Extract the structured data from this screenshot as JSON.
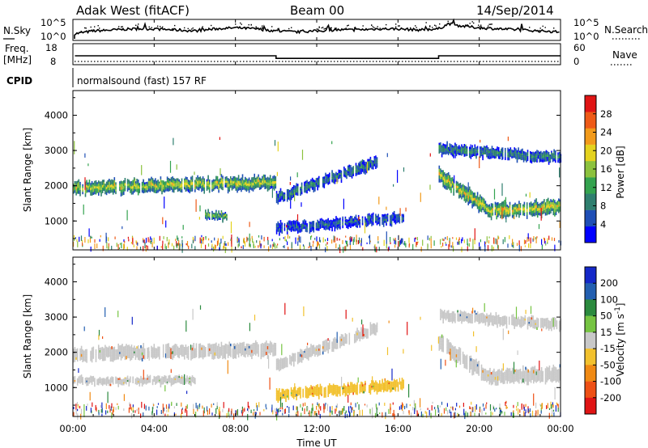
{
  "header": {
    "station": "Adak West (fitACF)",
    "beam": "Beam 00",
    "date": "14/Sep/2014"
  },
  "chart_data": [
    {
      "panel": "noise",
      "type": "line",
      "left_label": "N.Sky",
      "right_label": "N.Search",
      "left_ticks": [
        "10^5",
        "10^0"
      ],
      "right_ticks": [
        "10^5",
        "10^0"
      ],
      "series": [
        {
          "name": "N.Sky",
          "style": "solid"
        },
        {
          "name": "N.Search",
          "style": "dotted"
        }
      ],
      "x_hours": [
        0,
        1,
        2,
        3,
        4,
        5,
        6,
        7,
        8,
        9,
        10,
        11,
        12,
        13,
        14,
        15,
        16,
        17,
        18,
        18.5,
        19,
        20,
        21,
        22,
        23,
        24
      ],
      "y_frac": [
        0.3,
        0.45,
        0.5,
        0.55,
        0.55,
        0.5,
        0.45,
        0.55,
        0.6,
        0.55,
        0.45,
        0.4,
        0.45,
        0.5,
        0.5,
        0.55,
        0.55,
        0.5,
        0.55,
        0.8,
        0.7,
        0.6,
        0.55,
        0.5,
        0.45,
        0.4
      ]
    },
    {
      "panel": "frequency",
      "type": "line",
      "left_label": "Freq.",
      "left_units": "[MHz]",
      "right_label": "Nave",
      "left_ticks": [
        "18",
        "8"
      ],
      "right_ticks": [
        "60",
        "0"
      ],
      "series": [
        {
          "name": "Freq.",
          "style": "solid",
          "segments": [
            {
              "x0": 0.1,
              "x1": 10,
              "value": 10.5
            },
            {
              "x0": 10,
              "x1": 18,
              "value": 8.9
            },
            {
              "x0": 18,
              "x1": 24,
              "value": 10.5
            }
          ]
        },
        {
          "name": "Nave",
          "style": "dotted",
          "value": 7
        }
      ],
      "ylim": [
        5,
        18
      ]
    },
    {
      "panel": "cpid",
      "label": "CPID",
      "text": "normalsound (fast) 157 RF"
    },
    {
      "panel": "power",
      "type": "heatmap",
      "ylabel": "Slant Range [km]",
      "ylim": [
        180,
        4700
      ],
      "yticks": [
        "1000",
        "2000",
        "3000",
        "4000"
      ],
      "colorbar_label": "Power [dB]",
      "colorbar_ticks": [
        "4",
        "8",
        "12",
        "16",
        "20",
        "24",
        "28"
      ],
      "colormap": [
        "#0000ff",
        "#1f4fb6",
        "#2f7f6f",
        "#34a34f",
        "#8cc23e",
        "#e4d21e",
        "#f29a1a",
        "#ee5a17",
        "#e01414"
      ],
      "echo_bands": [
        {
          "x0": 0.0,
          "x1": 10.0,
          "r0_start": 1950,
          "r0_end": 2100,
          "width": 350,
          "peak_db": 18
        },
        {
          "x0": 10.0,
          "x1": 15.0,
          "r0_start": 1650,
          "r0_end": 2700,
          "width": 300,
          "peak_db": 9
        },
        {
          "x0": 10.0,
          "x1": 16.3,
          "r0_start": 800,
          "r0_end": 1100,
          "width": 280,
          "peak_db": 7
        },
        {
          "x0": 6.5,
          "x1": 7.6,
          "r0_start": 1150,
          "r0_end": 1150,
          "width": 220,
          "peak_db": 16
        },
        {
          "x0": 18.0,
          "x1": 20.5,
          "r0_start": 2300,
          "r0_end": 1300,
          "width": 380,
          "peak_db": 20
        },
        {
          "x0": 20.5,
          "x1": 24.0,
          "r0_start": 1300,
          "r0_end": 1400,
          "width": 380,
          "peak_db": 20
        },
        {
          "x0": 18.0,
          "x1": 24.0,
          "r0_start": 3050,
          "r0_end": 2800,
          "width": 280,
          "peak_db": 10
        }
      ]
    },
    {
      "panel": "velocity",
      "type": "heatmap",
      "ylabel": "Slant Range [km]",
      "ylim": [
        180,
        4700
      ],
      "yticks": [
        "1000",
        "2000",
        "3000",
        "4000"
      ],
      "colorbar_label": "Velocity",
      "colorbar_units": "[m s",
      "colorbar_units_sup": "-1",
      "colorbar_units_tail": "]",
      "colorbar_ticks": [
        "200",
        "100",
        "50",
        "15",
        "-15",
        "-50",
        "-100",
        "-200"
      ],
      "colormap": [
        "#1428c8",
        "#235fb0",
        "#2b8a3e",
        "#76c442",
        "#c8c8c8",
        "#f2c12e",
        "#f08a14",
        "#ee5015",
        "#e01414"
      ],
      "echo_bands": [
        {
          "x0": 0.0,
          "x1": 10.0,
          "r0_start": 1950,
          "r0_end": 2100,
          "width": 350,
          "velocity": 0
        },
        {
          "x0": 10.0,
          "x1": 15.0,
          "r0_start": 1650,
          "r0_end": 2700,
          "width": 300,
          "velocity": 0
        },
        {
          "x0": 10.0,
          "x1": 16.3,
          "r0_start": 800,
          "r0_end": 1100,
          "width": 280,
          "velocity": -40
        },
        {
          "x0": 0.0,
          "x1": 6.0,
          "r0_start": 1200,
          "r0_end": 1200,
          "width": 200,
          "velocity": 0
        },
        {
          "x0": 18.0,
          "x1": 20.5,
          "r0_start": 2300,
          "r0_end": 1300,
          "width": 380,
          "velocity": 0
        },
        {
          "x0": 20.5,
          "x1": 24.0,
          "r0_start": 1300,
          "r0_end": 1400,
          "width": 380,
          "velocity": 0
        },
        {
          "x0": 18.0,
          "x1": 24.0,
          "r0_start": 3050,
          "r0_end": 2800,
          "width": 280,
          "velocity": 0
        }
      ]
    }
  ],
  "x_axis": {
    "label": "Time UT",
    "ticks": [
      "00:00",
      "04:00",
      "08:00",
      "12:00",
      "16:00",
      "20:00",
      "00:00"
    ],
    "range_hours": [
      0,
      24
    ]
  }
}
